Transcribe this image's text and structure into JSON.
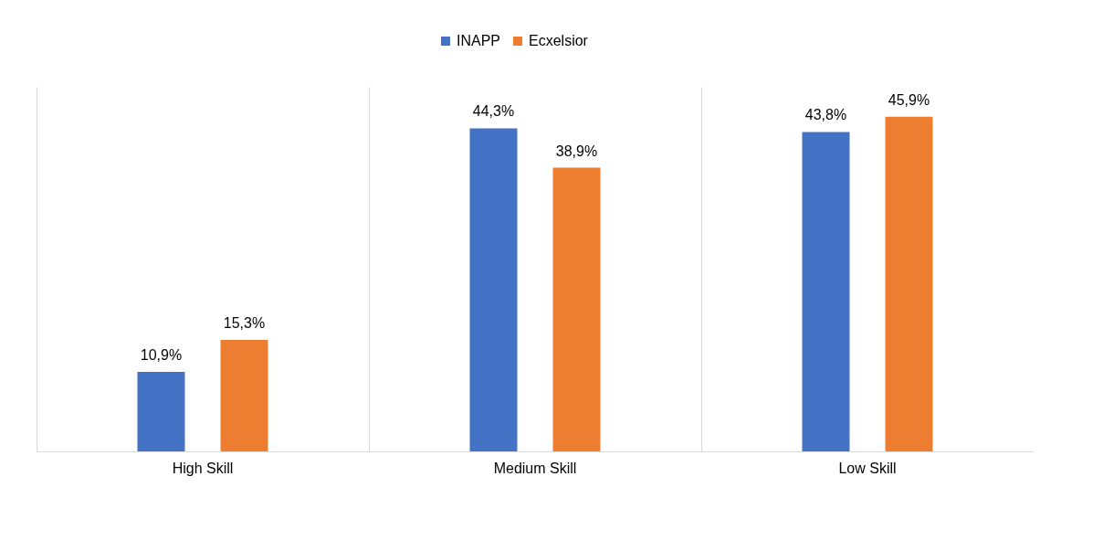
{
  "chart_data": {
    "type": "bar",
    "categories": [
      "High Skill",
      "Medium Skill",
      "Low Skill"
    ],
    "series": [
      {
        "name": "INAPP",
        "color": "#4472c4",
        "values": [
          10.9,
          44.3,
          43.8
        ],
        "value_labels": [
          "10,9%",
          "44,3%",
          "43,8%"
        ]
      },
      {
        "name": "Ecxelsior",
        "color": "#ed7d31",
        "values": [
          15.3,
          38.9,
          45.9
        ],
        "value_labels": [
          "15,3%",
          "38,9%",
          "45,9%"
        ]
      }
    ],
    "grid": "x",
    "legend": "top",
    "tick_labels": "x"
  }
}
